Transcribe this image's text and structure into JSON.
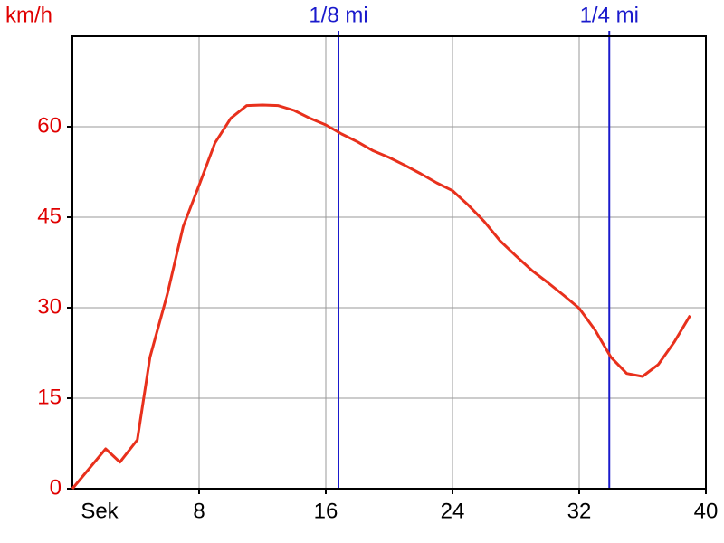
{
  "chart_data": {
    "type": "line",
    "ylabel": "km/h",
    "xlabel": "Sek",
    "x": [
      0,
      2.1,
      3.0,
      4.1,
      4.9,
      6.0,
      7.0,
      8.0,
      9.0,
      10.0,
      11.0,
      12.0,
      13.0,
      14.0,
      15.0,
      16.0,
      17.0,
      18.0,
      19.0,
      20.0,
      21.0,
      22.0,
      23.0,
      24.0,
      25.0,
      26.0,
      27.0,
      28.0,
      29.0,
      30.0,
      31.0,
      32.0,
      33.0,
      34.0,
      35.0,
      36.0,
      37.0,
      38.0,
      39.0
    ],
    "values": [
      0,
      6.6,
      4.4,
      8.1,
      21.8,
      32.3,
      43.5,
      50.3,
      57.3,
      61.4,
      63.5,
      63.6,
      63.5,
      62.7,
      61.4,
      60.3,
      58.8,
      57.5,
      56.0,
      54.9,
      53.6,
      52.2,
      50.7,
      49.4,
      47.0,
      44.3,
      41.1,
      38.6,
      36.2,
      34.2,
      32.1,
      29.9,
      26.3,
      21.8,
      19.1,
      18.6,
      20.6,
      24.3,
      28.7
    ],
    "color": "#e8301c",
    "xlim": [
      0,
      40
    ],
    "xticks": [
      8,
      16,
      24,
      32,
      40
    ],
    "ylim": [
      0,
      75
    ],
    "yticks": [
      0,
      15,
      30,
      45,
      60
    ],
    "grid": true,
    "markers": [
      {
        "x": 16.8,
        "label": "1/8 mi"
      },
      {
        "x": 33.9,
        "label": "1/4 mi"
      }
    ],
    "marker_color": "#1a1acc",
    "ytick_color": "#e00000"
  }
}
